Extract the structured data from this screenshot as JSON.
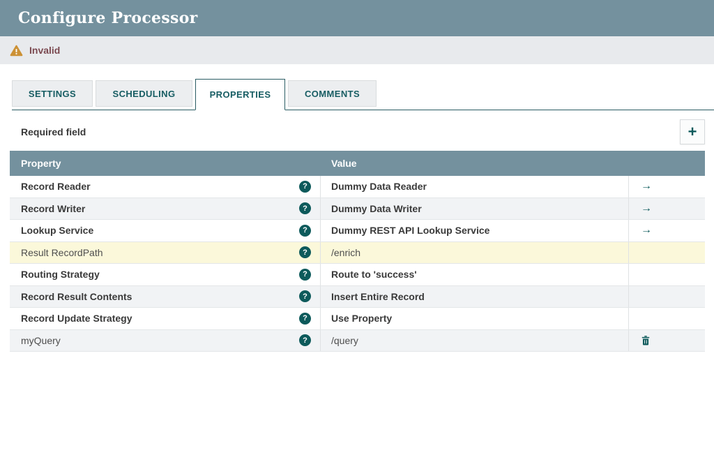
{
  "dialog": {
    "title": "Configure Processor"
  },
  "status_banner": {
    "label": "Invalid"
  },
  "tabs": [
    {
      "label": "SETTINGS",
      "active": false
    },
    {
      "label": "SCHEDULING",
      "active": false
    },
    {
      "label": "PROPERTIES",
      "active": true
    },
    {
      "label": "COMMENTS",
      "active": false
    }
  ],
  "properties_panel": {
    "required_field_label": "Required field"
  },
  "icons": {
    "add": "+",
    "help": "?",
    "go_to": "→",
    "warning": "triangle-exclamation",
    "delete": "trash"
  },
  "table": {
    "columns": [
      "Property",
      "Value"
    ],
    "rows": [
      {
        "property": "Record Reader",
        "value": "Dummy Data Reader",
        "required": true,
        "modified": false,
        "action": "go-to"
      },
      {
        "property": "Record Writer",
        "value": "Dummy Data Writer",
        "required": true,
        "modified": false,
        "action": "go-to"
      },
      {
        "property": "Lookup Service",
        "value": "Dummy REST API Lookup Service",
        "required": true,
        "modified": false,
        "action": "go-to"
      },
      {
        "property": "Result RecordPath",
        "value": "/enrich",
        "required": false,
        "modified": true,
        "action": null
      },
      {
        "property": "Routing Strategy",
        "value": "Route to 'success'",
        "required": true,
        "modified": false,
        "action": null
      },
      {
        "property": "Record Result Contents",
        "value": "Insert Entire Record",
        "required": true,
        "modified": false,
        "action": null
      },
      {
        "property": "Record Update Strategy",
        "value": "Use Property",
        "required": true,
        "modified": false,
        "action": null
      },
      {
        "property": "myQuery",
        "value": "/query",
        "required": false,
        "modified": false,
        "action": "delete"
      }
    ]
  },
  "colors": {
    "header_bg": "#74919e",
    "accent_teal": "#0d5a5b",
    "tab_text": "#175d63",
    "warning_icon": "#cc9135",
    "invalid_text": "#7b4a51",
    "banner_bg": "#e8eaed",
    "modified_row_bg": "#fbf8da",
    "alt_row_bg": "#f1f3f5"
  }
}
